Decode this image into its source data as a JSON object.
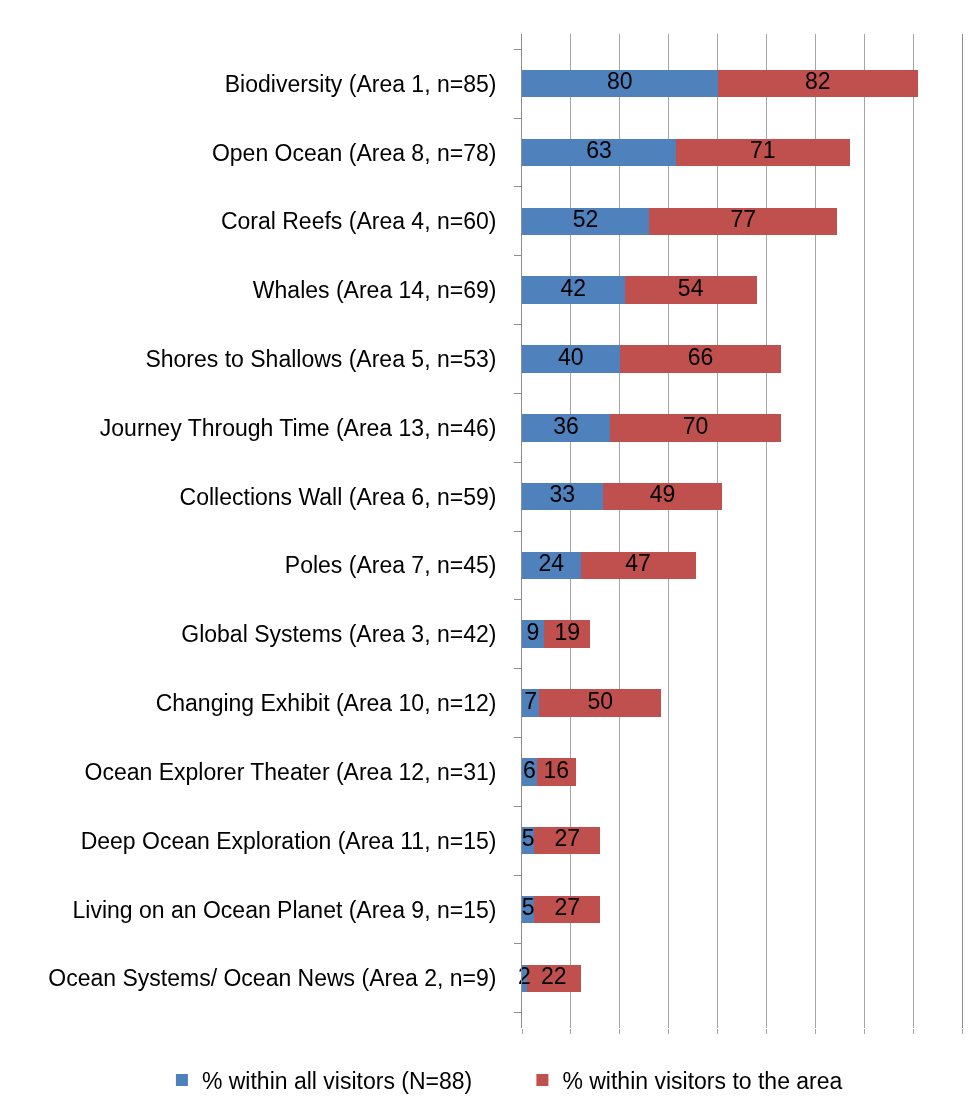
{
  "chart_data": {
    "type": "bar",
    "orientation": "horizontal",
    "stacked": true,
    "categories": [
      "Biodiversity (Area 1, n=85)",
      "Open Ocean (Area 8, n=78)",
      "Coral Reefs (Area 4, n=60)",
      "Whales (Area 14, n=69)",
      "Shores to Shallows (Area 5, n=53)",
      "Journey Through Time (Area 13, n=46)",
      "Collections Wall (Area 6, n=59)",
      "Poles (Area 7, n=45)",
      "Global Systems (Area 3, n=42)",
      "Changing Exhibit (Area 10, n=12)",
      "Ocean Explorer Theater (Area 12, n=31)",
      "Deep Ocean Exploration (Area 11, n=15)",
      "Living on an Ocean Planet (Area 9, n=15)",
      "Ocean Systems/ Ocean News (Area 2, n=9)"
    ],
    "series": [
      {
        "name": "% within all visitors (N=88)",
        "color": "#4f81bd",
        "values": [
          80,
          63,
          52,
          42,
          40,
          36,
          33,
          24,
          9,
          7,
          6,
          5,
          5,
          2
        ]
      },
      {
        "name": "% within visitors to the area",
        "color": "#c0504d",
        "values": [
          82,
          71,
          77,
          54,
          66,
          70,
          49,
          47,
          19,
          50,
          16,
          27,
          27,
          22
        ]
      }
    ],
    "xlim": [
      0,
      180
    ],
    "xticks": [
      {
        "value": 0,
        "label": null
      },
      {
        "value": 20,
        "label": null
      },
      {
        "value": 40,
        "label": null
      },
      {
        "value": 60,
        "label": null
      },
      {
        "value": 80,
        "label": null
      },
      {
        "value": 100,
        "label": null
      },
      {
        "value": 120,
        "label": null
      },
      {
        "value": 140,
        "label": null
      },
      {
        "value": 160,
        "label": null
      },
      {
        "value": 180,
        "label": null
      }
    ],
    "tick_labels": "y",
    "grid": "x",
    "data_labels": true,
    "legend": "bottom"
  }
}
